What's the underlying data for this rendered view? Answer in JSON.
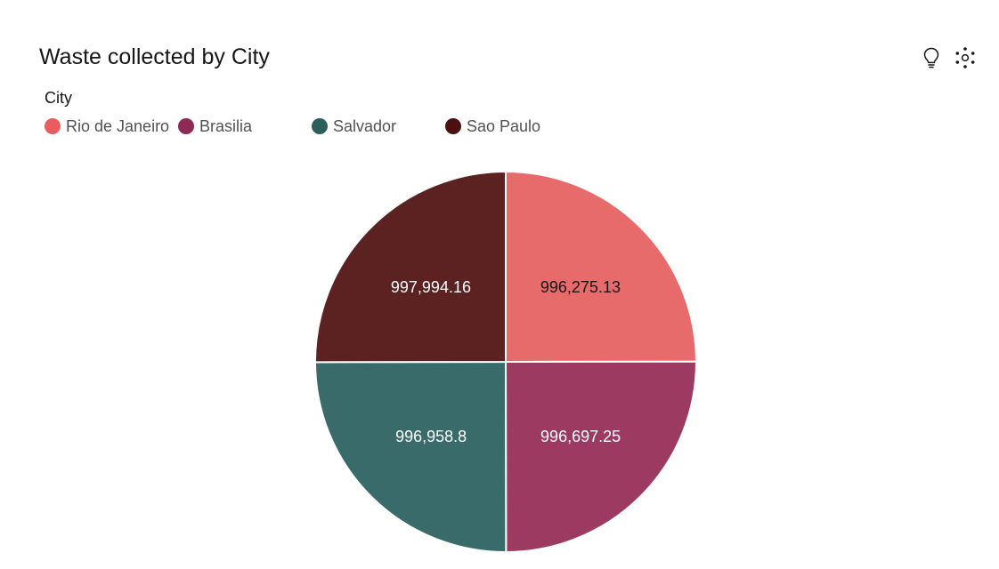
{
  "header": {
    "title": "Waste collected by City",
    "insights_icon": "lightbulb-icon",
    "settings_icon": "data-cluster-icon"
  },
  "legend": {
    "title": "City"
  },
  "chart_data": {
    "type": "pie",
    "title": "Waste collected by City",
    "legend_title": "City",
    "legend_placement": "top-left",
    "slices": [
      {
        "name": "Rio de Janeiro",
        "value": 996275.13,
        "label": "996,275.13",
        "color": "#e86b6b",
        "label_color": "#161616"
      },
      {
        "name": "Brasilia",
        "value": 996697.25,
        "label": "996,697.25",
        "color": "#9d3a62",
        "label_color": "#ffffff"
      },
      {
        "name": "Salvador",
        "value": 996958.8,
        "label": "996,958.8",
        "color": "#3a6b6b",
        "label_color": "#ffffff"
      },
      {
        "name": "Sao Paulo",
        "value": 997994.16,
        "label": "997,994.16",
        "color": "#5c2222",
        "label_color": "#ffffff"
      }
    ],
    "legend_colors": [
      "#e85d60",
      "#8e2a55",
      "#2b5f5d",
      "#4d1010"
    ]
  }
}
